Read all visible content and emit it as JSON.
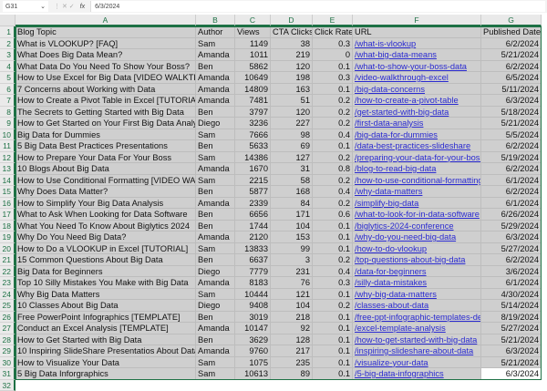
{
  "formula_bar": {
    "name_box": "G31",
    "fx": "fx",
    "value": "6/3/2024"
  },
  "columns": [
    "A",
    "B",
    "C",
    "D",
    "E",
    "F",
    "G"
  ],
  "colors": {
    "selection_border": "#1e7145",
    "selection_fill": "#cfcfcf",
    "link": "#2a2ad0"
  },
  "header": [
    "Blog Topic",
    "Author",
    "Views",
    "CTA Clicks",
    "Click Rate",
    "URL",
    "Published Date"
  ],
  "rows": [
    [
      "What is VLOOKUP? [FAQ]",
      "Sam",
      "1149",
      "38",
      "0.3",
      "/what-is-vlookup",
      "6/2/2024"
    ],
    [
      "What Does Big Data Mean?",
      "Amanda",
      "1011",
      "219",
      "0",
      "/what-big-data-means",
      "5/21/2024"
    ],
    [
      "What Data Do You Need To Show Your Boss?",
      "Ben",
      "5862",
      "120",
      "0.1",
      "/what-to-show-your-boss-data",
      "6/2/2024"
    ],
    [
      "How to Use Excel for Big Data [VIDEO WALKTHRO",
      "Amanda",
      "10649",
      "198",
      "0.3",
      "/video-walkthrough-excel",
      "6/5/2024"
    ],
    [
      "7 Concerns about Working with Data",
      "Amanda",
      "14809",
      "163",
      "0.1",
      "/big-data-concerns",
      "5/11/2024"
    ],
    [
      "How to Create a Pivot Table in Excel [TUTORIAL]",
      "Amanda",
      "7481",
      "51",
      "0.2",
      "/how-to-create-a-pivot-table",
      "6/3/2024"
    ],
    [
      "The Secrets to Getting Started with Big Data",
      "Ben",
      "3797",
      "120",
      "0.2",
      "/get-started-with-big-data",
      "5/18/2024"
    ],
    [
      "How to Get Started on Your First Big Data Analys",
      "Diego",
      "3236",
      "227",
      "0.2",
      "/first-data-analysis",
      "5/21/2024"
    ],
    [
      "Big Data for Dummies",
      "Sam",
      "7666",
      "98",
      "0.4",
      "/big-data-for-dummies",
      "5/5/2024"
    ],
    [
      "5 Big Data Best Practices Presentations",
      "Ben",
      "5633",
      "69",
      "0.1",
      "/data-best-practices-slideshare",
      "6/2/2024"
    ],
    [
      "How to Prepare Your Data For Your Boss",
      "Sam",
      "14386",
      "127",
      "0.2",
      "/preparing-your-data-for-your-boss",
      "5/19/2024"
    ],
    [
      "10 Blogs About Big Data",
      "Amanda",
      "1670",
      "31",
      "0.8",
      "/blog-to-read-big-data",
      "6/2/2024"
    ],
    [
      "How to Use Conditional Formatting [VIDEO WALI",
      "Sam",
      "2215",
      "58",
      "0.2",
      "/how-to-use-conditional-formatting",
      "6/1/2024"
    ],
    [
      "Why Does Data Matter?",
      "Ben",
      "5877",
      "168",
      "0.4",
      "/why-data-matters",
      "6/2/2024"
    ],
    [
      "How to Simplify Your Big Data Analysis",
      "Amanda",
      "2339",
      "84",
      "0.2",
      "/simplify-big-data",
      "6/1/2024"
    ],
    [
      "What to Ask When Looking for Data Software",
      "Ben",
      "6656",
      "171",
      "0.6",
      "/what-to-look-for-in-data-software",
      "6/26/2024"
    ],
    [
      "What You Need To Know About Biglytics 2024",
      "Ben",
      "1744",
      "104",
      "0.1",
      "/biglytics-2024-conference",
      "5/29/2024"
    ],
    [
      "Why Do You Need Big Data?",
      "Amanda",
      "2120",
      "153",
      "0.1",
      "/why-do-you-need-big-data",
      "6/3/2024"
    ],
    [
      "How to Do a VLOOKUP in Excel [TUTORIAL]",
      "Sam",
      "13833",
      "99",
      "0.1",
      "/how-to-do-vlookup",
      "5/27/2024"
    ],
    [
      "15 Common Questions About Big Data",
      "Ben",
      "6637",
      "3",
      "0.2",
      "/top-questions-about-big-data",
      "6/2/2024"
    ],
    [
      "Big Data for Beginners",
      "Diego",
      "7779",
      "231",
      "0.4",
      "/data-for-beginners",
      "3/6/2024"
    ],
    [
      "Top 10 Silly Mistakes You Make with Big Data",
      "Amanda",
      "8183",
      "76",
      "0.3",
      "/silly-data-mistakes",
      "6/1/2024"
    ],
    [
      "Why Big Data Matters",
      "Sam",
      "10444",
      "121",
      "0.1",
      "/why-big-data-matters",
      "4/30/2024"
    ],
    [
      "10 Classes About Big Data",
      "Diego",
      "9408",
      "104",
      "0.2",
      "/classes-about-data",
      "5/14/2024"
    ],
    [
      "Free PowerPoint Infographics [TEMPLATE]",
      "Ben",
      "3019",
      "218",
      "0.1",
      "/free-ppt-infographic-templates-de",
      "8/19/2024"
    ],
    [
      "Conduct an Excel Analysis [TEMPLATE]",
      "Amanda",
      "10147",
      "92",
      "0.1",
      "/excel-template-analysis",
      "5/27/2024"
    ],
    [
      "How to Get Started with Big Data",
      "Ben",
      "3629",
      "128",
      "0.1",
      "/how-to-get-started-with-big-data",
      "5/21/2024"
    ],
    [
      "10 Inspiring SlideShare Presentatios About Data",
      "Amanda",
      "9760",
      "217",
      "0.1",
      "/inspiring-slideshare-about-data",
      "6/3/2024"
    ],
    [
      "How to Visualize Your Data",
      "Sam",
      "1075",
      "235",
      "0.1",
      "/visualize-your-data",
      "5/21/2024"
    ],
    [
      "5 Big Data Inforgraphics",
      "Sam",
      "10613",
      "89",
      "0.1",
      "/5-big-data-infographics",
      "6/3/2024"
    ]
  ]
}
